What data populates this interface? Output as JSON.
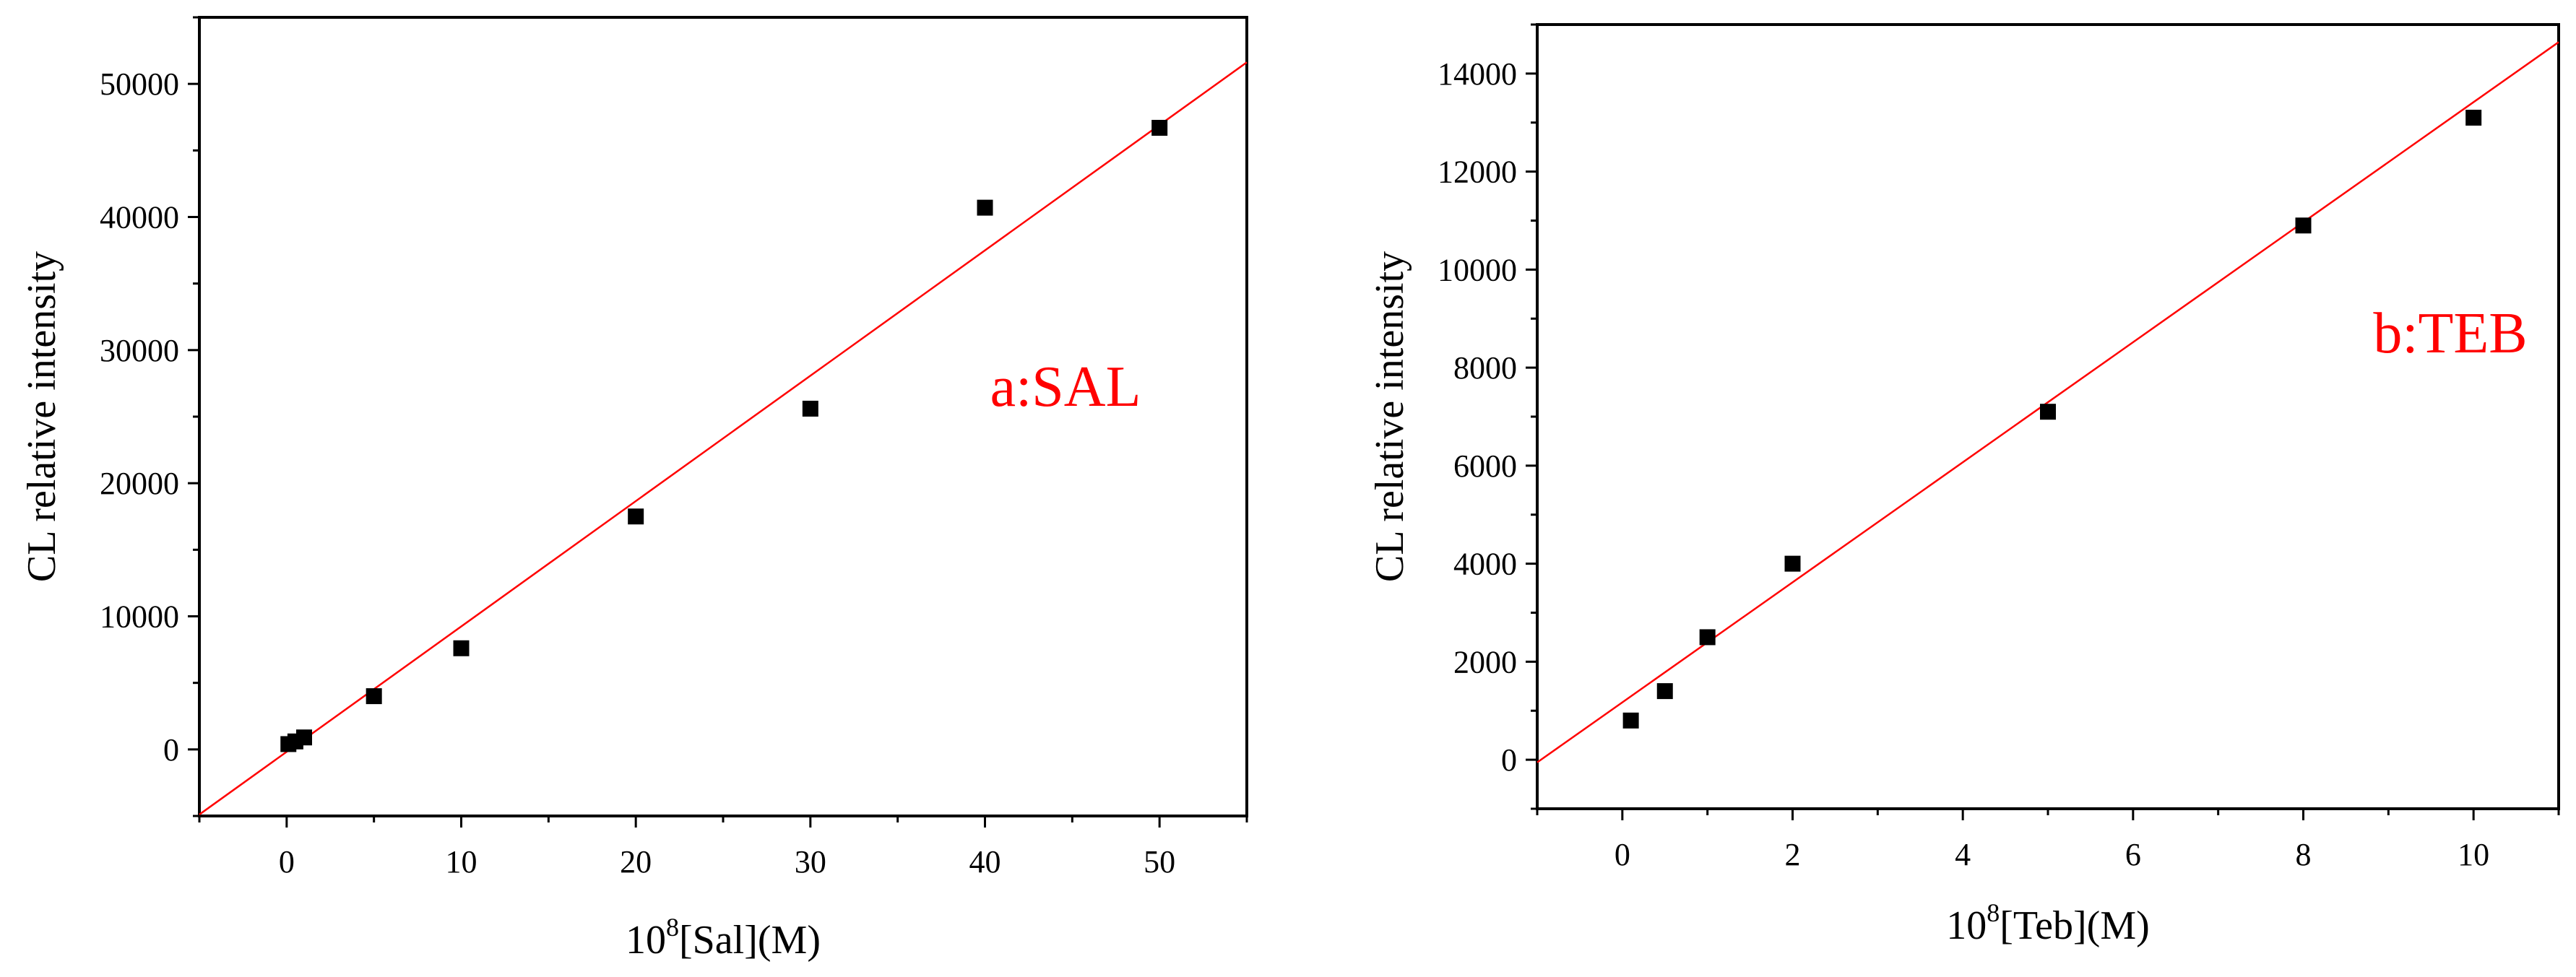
{
  "chart_data": [
    {
      "type": "scatter",
      "panel_label": "a:SAL",
      "xlabel_base": "10",
      "xlabel_exp": "8",
      "xlabel_rest": "[Sal](M)",
      "ylabel": "CL relative intensity",
      "xlim": [
        -5,
        55
      ],
      "ylim": [
        -5000,
        55000
      ],
      "xticks": [
        0,
        10,
        20,
        30,
        40,
        50
      ],
      "yticks": [
        0,
        10000,
        20000,
        30000,
        40000,
        50000
      ],
      "grid": false,
      "legend": "none",
      "marker_color": "#000000",
      "fit_color": "#ff0000",
      "label_color": "#ff0000",
      "points": [
        {
          "x": 0.1,
          "y": 400
        },
        {
          "x": 0.5,
          "y": 600
        },
        {
          "x": 1,
          "y": 900
        },
        {
          "x": 5,
          "y": 4000
        },
        {
          "x": 10,
          "y": 7600
        },
        {
          "x": 20,
          "y": 17500
        },
        {
          "x": 30,
          "y": 25600
        },
        {
          "x": 40,
          "y": 40700
        },
        {
          "x": 50,
          "y": 46700
        }
      ],
      "fit_line": {
        "slope": 941.8,
        "intercept": -179
      }
    },
    {
      "type": "scatter",
      "panel_label": "b:TEB",
      "xlabel_base": "10",
      "xlabel_exp": "8",
      "xlabel_rest": "[Teb](M)",
      "ylabel": "CL relative intensity",
      "xlim": [
        -1,
        11
      ],
      "ylim": [
        -1000,
        15000
      ],
      "xticks": [
        0,
        2,
        4,
        6,
        8,
        10
      ],
      "yticks": [
        0,
        2000,
        4000,
        6000,
        8000,
        10000,
        12000,
        14000
      ],
      "grid": false,
      "legend": "none",
      "marker_color": "#000000",
      "fit_color": "#ff0000",
      "label_color": "#ff0000",
      "points": [
        {
          "x": 0.1,
          "y": 800
        },
        {
          "x": 0.5,
          "y": 1400
        },
        {
          "x": 1,
          "y": 2500
        },
        {
          "x": 2,
          "y": 4000
        },
        {
          "x": 5,
          "y": 7100
        },
        {
          "x": 8,
          "y": 10900
        },
        {
          "x": 10,
          "y": 13100
        }
      ],
      "fit_line": {
        "slope": 1224.6,
        "intercept": 1171
      }
    }
  ]
}
